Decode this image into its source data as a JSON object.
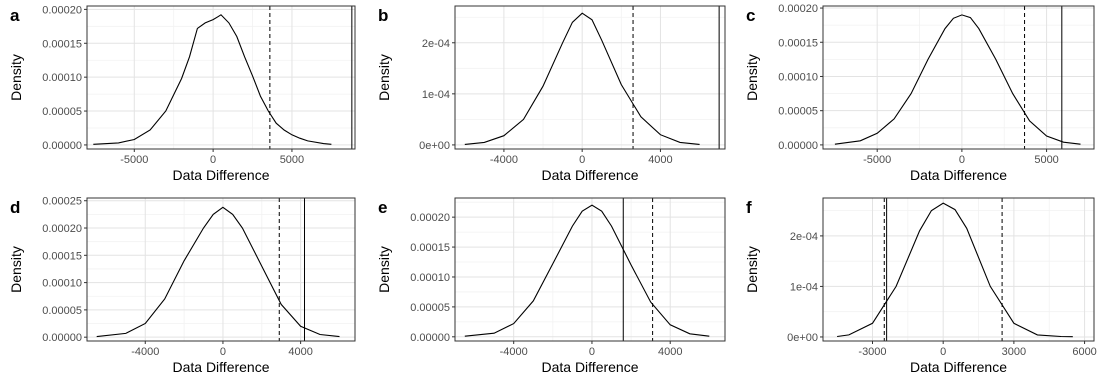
{
  "chart_data": [
    {
      "panel": "a",
      "type": "line",
      "xlabel": "Data Difference",
      "ylabel": "Density",
      "xlim": [
        -8000,
        9000
      ],
      "ylim": [
        -6e-06,
        0.000205
      ],
      "xticks": [
        -5000,
        0,
        5000
      ],
      "xtick_labels": [
        "-5000",
        "0",
        "5000"
      ],
      "yticks": [
        0,
        5e-05,
        0.0001,
        0.00015,
        0.0002
      ],
      "ytick_labels": [
        "0.00000",
        "0.00005",
        "0.00010",
        "0.00015",
        "0.00020"
      ],
      "vlines": [
        {
          "x": 3600,
          "style": "dashed"
        },
        {
          "x": 8800,
          "style": "solid"
        }
      ],
      "series": [
        {
          "x": [
            -7600,
            -6000,
            -5000,
            -4000,
            -3000,
            -2000,
            -1500,
            -1000,
            -500,
            0,
            300,
            500,
            1000,
            1500,
            2000,
            2500,
            3000,
            3500,
            4000,
            4500,
            5000,
            5500,
            6000,
            7000,
            7500
          ],
          "y": [
            1e-06,
            3e-06,
            8e-06,
            2.2e-05,
            5e-05,
            9.8e-05,
            0.00013,
            0.000172,
            0.00018,
            0.000185,
            0.000189,
            0.000192,
            0.00018,
            0.00016,
            0.00013,
            0.000102,
            7.2e-05,
            5e-05,
            3.2e-05,
            2.2e-05,
            1.5e-05,
            1e-05,
            6e-06,
            2e-06,
            1e-06
          ]
        }
      ]
    },
    {
      "panel": "b",
      "type": "line",
      "xlabel": "Data Difference",
      "ylabel": "Density",
      "xlim": [
        -6500,
        7300
      ],
      "ylim": [
        -8e-06,
        0.000272
      ],
      "xticks": [
        -4000,
        0,
        4000
      ],
      "xtick_labels": [
        "-4000",
        "0",
        "4000"
      ],
      "yticks": [
        0,
        0.0001,
        0.0002
      ],
      "ytick_labels": [
        "0e+00",
        "1e-04",
        "2e-04"
      ],
      "vlines": [
        {
          "x": 2600,
          "style": "dashed"
        },
        {
          "x": 7000,
          "style": "solid"
        }
      ],
      "series": [
        {
          "x": [
            -6000,
            -5000,
            -4000,
            -3000,
            -2000,
            -1000,
            -500,
            0,
            500,
            1000,
            2000,
            3000,
            4000,
            5000,
            6000
          ],
          "y": [
            1e-06,
            5e-06,
            1.8e-05,
            5e-05,
            0.000115,
            0.0002,
            0.00024,
            0.000258,
            0.000245,
            0.000205,
            0.000118,
            5.5e-05,
            2e-05,
            5e-06,
            1e-06
          ]
        }
      ]
    },
    {
      "panel": "c",
      "type": "line",
      "xlabel": "Data Difference",
      "ylabel": "Density",
      "xlim": [
        -8200,
        7800
      ],
      "ylim": [
        -6e-06,
        0.000203
      ],
      "xticks": [
        -5000,
        0,
        5000
      ],
      "xtick_labels": [
        "-5000",
        "0",
        "5000"
      ],
      "yticks": [
        0,
        5e-05,
        0.0001,
        0.00015,
        0.0002
      ],
      "ytick_labels": [
        "0.00000",
        "0.00005",
        "0.00010",
        "0.00015",
        "0.00020"
      ],
      "vlines": [
        {
          "x": 3700,
          "style": "dashed"
        },
        {
          "x": 5900,
          "style": "solid"
        }
      ],
      "series": [
        {
          "x": [
            -7500,
            -6000,
            -5000,
            -4000,
            -3000,
            -2000,
            -1000,
            -500,
            0,
            500,
            1000,
            2000,
            3000,
            4000,
            5000,
            6000,
            7000
          ],
          "y": [
            1e-06,
            6e-06,
            1.7e-05,
            3.8e-05,
            7.5e-05,
            0.000125,
            0.00017,
            0.000185,
            0.00019,
            0.000186,
            0.00017,
            0.000125,
            7.5e-05,
            3.5e-05,
            1.3e-05,
            4e-06,
            1e-06
          ]
        }
      ]
    },
    {
      "panel": "d",
      "type": "line",
      "xlabel": "Data Difference",
      "ylabel": "Density",
      "xlim": [
        -7000,
        6800
      ],
      "ylim": [
        -7e-06,
        0.000255
      ],
      "xticks": [
        -4000,
        0,
        4000
      ],
      "xtick_labels": [
        "-4000",
        "0",
        "4000"
      ],
      "yticks": [
        0,
        5e-05,
        0.0001,
        0.00015,
        0.0002,
        0.00025
      ],
      "ytick_labels": [
        "0.00000",
        "0.00005",
        "0.00010",
        "0.00015",
        "0.00020",
        "0.00025"
      ],
      "vlines": [
        {
          "x": 2900,
          "style": "dashed"
        },
        {
          "x": 4200,
          "style": "solid"
        }
      ],
      "series": [
        {
          "x": [
            -6500,
            -5000,
            -4000,
            -3000,
            -2000,
            -1000,
            -500,
            0,
            500,
            1000,
            2000,
            3000,
            4000,
            5000,
            6000
          ],
          "y": [
            1e-06,
            7e-06,
            2.5e-05,
            7e-05,
            0.00014,
            0.0002,
            0.000225,
            0.000238,
            0.000225,
            0.0002,
            0.00013,
            6e-05,
            2e-05,
            5e-06,
            1e-06
          ]
        }
      ]
    },
    {
      "panel": "e",
      "type": "line",
      "xlabel": "Data Difference",
      "ylabel": "Density",
      "xlim": [
        -7000,
        6800
      ],
      "ylim": [
        -7e-06,
        0.000232
      ],
      "xticks": [
        -4000,
        0,
        4000
      ],
      "xtick_labels": [
        "-4000",
        "0",
        "4000"
      ],
      "yticks": [
        0,
        5e-05,
        0.0001,
        0.00015,
        0.0002
      ],
      "ytick_labels": [
        "0.00000",
        "0.00005",
        "0.00010",
        "0.00015",
        "0.00020"
      ],
      "vlines": [
        {
          "x": 1600,
          "style": "solid"
        },
        {
          "x": 3100,
          "style": "dashed"
        }
      ],
      "series": [
        {
          "x": [
            -6500,
            -5000,
            -4000,
            -3000,
            -2000,
            -1000,
            -500,
            0,
            500,
            1000,
            2000,
            3000,
            4000,
            5000,
            6000
          ],
          "y": [
            1e-06,
            6e-06,
            2.2e-05,
            6e-05,
            0.000122,
            0.000185,
            0.00021,
            0.00022,
            0.00021,
            0.000185,
            0.00012,
            5.8e-05,
            2e-05,
            5e-06,
            1e-06
          ]
        }
      ]
    },
    {
      "panel": "f",
      "type": "line",
      "xlabel": "Data Difference",
      "ylabel": "Density",
      "xlim": [
        -5100,
        6400
      ],
      "ylim": [
        -8e-06,
        0.000275
      ],
      "xticks": [
        -3000,
        0,
        3000,
        6000
      ],
      "xtick_labels": [
        "-3000",
        "0",
        "3000",
        "6000"
      ],
      "yticks": [
        0,
        0.0001,
        0.0002
      ],
      "ytick_labels": [
        "0e+00",
        "1e-04",
        "2e-04"
      ],
      "vlines": [
        {
          "x": -2500,
          "style": "dashed"
        },
        {
          "x": -2400,
          "style": "solid"
        },
        {
          "x": 2500,
          "style": "dashed"
        }
      ],
      "series": [
        {
          "x": [
            -4500,
            -4000,
            -3000,
            -2000,
            -1000,
            -500,
            0,
            500,
            1000,
            2000,
            3000,
            4000,
            5000,
            5500
          ],
          "y": [
            1e-06,
            4e-06,
            2.7e-05,
            0.0001,
            0.00021,
            0.00025,
            0.000265,
            0.000252,
            0.000215,
            0.0001,
            2.7e-05,
            4e-06,
            1e-06,
            5e-07
          ]
        }
      ]
    }
  ]
}
